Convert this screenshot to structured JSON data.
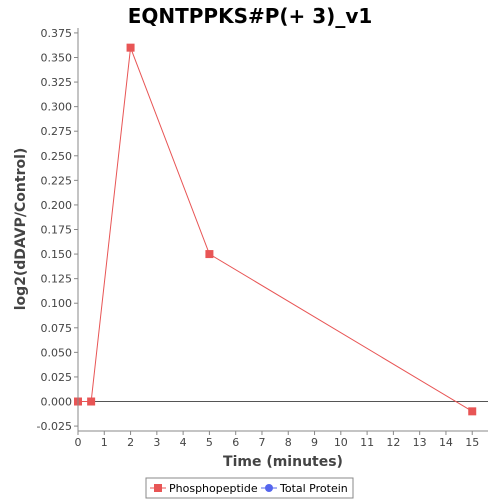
{
  "colors": {
    "phospho": "#e85555",
    "total": "#5566ee",
    "axis": "#888888",
    "zero_line": "#555555",
    "plot_border": "#888888",
    "legend_border": "#888888"
  },
  "chart_data": {
    "type": "line",
    "title": "EQNTPPKS#P(+ 3)_v1",
    "xlabel": "Time (minutes)",
    "ylabel": "log2(dDAVP/Control)",
    "xlim": [
      0,
      15.6
    ],
    "ylim": [
      -0.03,
      0.38
    ],
    "x_ticks": [
      0,
      1,
      2,
      3,
      4,
      5,
      6,
      7,
      8,
      9,
      10,
      11,
      12,
      13,
      14,
      15
    ],
    "x_tick_labels": [
      "0",
      "1",
      "2",
      "3",
      "4",
      "5",
      "6",
      "7",
      "8",
      "9",
      "10",
      "11",
      "12",
      "13",
      "14",
      "15"
    ],
    "y_ticks": [
      -0.025,
      0,
      0.025,
      0.05,
      0.075,
      0.1,
      0.125,
      0.15,
      0.175,
      0.2,
      0.225,
      0.25,
      0.275,
      0.3,
      0.325,
      0.35,
      0.375
    ],
    "y_tick_labels": [
      "-0.025",
      "0.000",
      "0.025",
      "0.050",
      "0.075",
      "0.100",
      "0.125",
      "0.150",
      "0.175",
      "0.200",
      "0.225",
      "0.250",
      "0.275",
      "0.300",
      "0.325",
      "0.350",
      "0.375"
    ],
    "zero_line": true,
    "legend_position": "bottom",
    "series": [
      {
        "name": "Phosphopeptide",
        "marker": "square",
        "color": "#e85555",
        "x": [
          0,
          0.5,
          2,
          5,
          15
        ],
        "y": [
          0.0,
          0.0,
          0.36,
          0.15,
          -0.01
        ]
      },
      {
        "name": "Total Protein",
        "marker": "circle",
        "color": "#5566ee",
        "x": [],
        "y": []
      }
    ]
  }
}
